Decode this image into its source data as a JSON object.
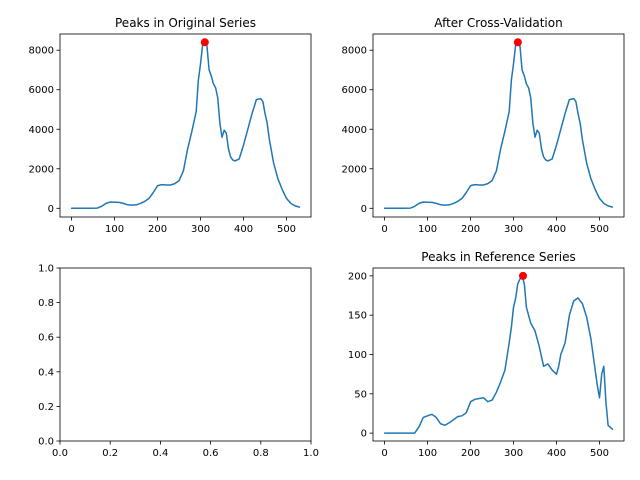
{
  "colors": {
    "line": "#1f77b4",
    "peak": "#ff0000"
  },
  "chart_data": [
    {
      "panel": "top-left",
      "type": "line",
      "title": "Peaks in Original Series",
      "xlim": [
        -27,
        557
      ],
      "ylim": [
        -440,
        8820
      ],
      "xticks": [
        0,
        100,
        200,
        300,
        400,
        500
      ],
      "yticks": [
        0,
        2000,
        4000,
        6000,
        8000
      ],
      "series": [
        {
          "x": [
            0,
            20,
            40,
            60,
            70,
            80,
            90,
            100,
            110,
            120,
            130,
            140,
            150,
            160,
            170,
            180,
            190,
            200,
            210,
            220,
            230,
            240,
            250,
            260,
            270,
            280,
            290,
            295,
            300,
            305,
            310,
            315,
            320,
            325,
            330,
            335,
            340,
            345,
            350,
            355,
            360,
            365,
            370,
            375,
            380,
            390,
            400,
            410,
            420,
            430,
            440,
            445,
            450,
            455,
            460,
            470,
            480,
            490,
            500,
            510,
            520,
            530
          ],
          "y": [
            0,
            0,
            0,
            10,
            100,
            250,
            320,
            310,
            300,
            250,
            180,
            160,
            170,
            250,
            350,
            500,
            800,
            1150,
            1200,
            1180,
            1180,
            1250,
            1400,
            1900,
            3000,
            3900,
            4900,
            6500,
            7300,
            8300,
            8400,
            8200,
            7000,
            6700,
            6300,
            6100,
            5600,
            4300,
            3600,
            3950,
            3800,
            3000,
            2600,
            2450,
            2400,
            2500,
            3200,
            4000,
            4800,
            5500,
            5550,
            5400,
            4800,
            4300,
            3500,
            2300,
            1500,
            950,
            500,
            250,
            120,
            60
          ]
        }
      ],
      "peaks": [
        {
          "x": 310,
          "y": 8400
        }
      ]
    },
    {
      "panel": "top-right",
      "type": "line",
      "title": "After Cross-Validation",
      "xlim": [
        -27,
        557
      ],
      "ylim": [
        -440,
        8820
      ],
      "xticks": [
        0,
        100,
        200,
        300,
        400,
        500
      ],
      "yticks": [
        0,
        2000,
        4000,
        6000,
        8000
      ],
      "series": [
        {
          "x": [
            0,
            20,
            40,
            60,
            70,
            80,
            90,
            100,
            110,
            120,
            130,
            140,
            150,
            160,
            170,
            180,
            190,
            200,
            210,
            220,
            230,
            240,
            250,
            260,
            270,
            280,
            290,
            295,
            300,
            305,
            310,
            315,
            320,
            325,
            330,
            335,
            340,
            345,
            350,
            355,
            360,
            365,
            370,
            375,
            380,
            390,
            400,
            410,
            420,
            430,
            440,
            445,
            450,
            455,
            460,
            470,
            480,
            490,
            500,
            510,
            520,
            530
          ],
          "y": [
            0,
            0,
            0,
            10,
            100,
            250,
            320,
            310,
            300,
            250,
            180,
            160,
            170,
            250,
            350,
            500,
            800,
            1150,
            1200,
            1180,
            1180,
            1250,
            1400,
            1900,
            3000,
            3900,
            4900,
            6500,
            7300,
            8300,
            8400,
            8200,
            7000,
            6700,
            6300,
            6100,
            5600,
            4300,
            3600,
            3950,
            3800,
            3000,
            2600,
            2450,
            2400,
            2500,
            3200,
            4000,
            4800,
            5500,
            5550,
            5400,
            4800,
            4300,
            3500,
            2300,
            1500,
            950,
            500,
            250,
            120,
            60
          ]
        }
      ],
      "peaks": [
        {
          "x": 310,
          "y": 8400
        }
      ]
    },
    {
      "panel": "bottom-left",
      "type": "line",
      "title": "",
      "xlim": [
        0,
        1
      ],
      "ylim": [
        0,
        1
      ],
      "xticks": [
        0.0,
        0.2,
        0.4,
        0.6,
        0.8,
        1.0
      ],
      "yticks": [
        0.0,
        0.2,
        0.4,
        0.6,
        0.8,
        1.0
      ],
      "tick_decimals": 1,
      "series": [],
      "peaks": []
    },
    {
      "panel": "bottom-right",
      "type": "line",
      "title": "Peaks in Reference Series",
      "xlim": [
        -27,
        557
      ],
      "ylim": [
        -10,
        210
      ],
      "xticks": [
        0,
        100,
        200,
        300,
        400,
        500
      ],
      "yticks": [
        0,
        50,
        100,
        150,
        200
      ],
      "series": [
        {
          "x": [
            0,
            20,
            40,
            60,
            70,
            80,
            90,
            100,
            110,
            120,
            130,
            140,
            150,
            160,
            170,
            180,
            190,
            200,
            210,
            220,
            230,
            240,
            250,
            260,
            270,
            280,
            290,
            295,
            300,
            305,
            310,
            315,
            320,
            325,
            330,
            340,
            350,
            360,
            370,
            380,
            390,
            400,
            405,
            410,
            420,
            430,
            440,
            450,
            455,
            460,
            470,
            480,
            490,
            495,
            500,
            505,
            510,
            515,
            520,
            530
          ],
          "y": [
            0,
            0,
            0,
            0,
            0,
            8,
            20,
            22,
            24,
            20,
            12,
            10,
            13,
            17,
            21,
            22,
            26,
            40,
            43,
            44,
            45,
            40,
            42,
            52,
            65,
            80,
            115,
            135,
            160,
            172,
            190,
            196,
            200,
            190,
            160,
            140,
            130,
            110,
            85,
            88,
            80,
            75,
            85,
            100,
            115,
            150,
            168,
            172,
            168,
            165,
            148,
            120,
            80,
            60,
            45,
            75,
            85,
            40,
            10,
            5
          ]
        }
      ],
      "peaks": [
        {
          "x": 322,
          "y": 200
        }
      ]
    }
  ]
}
